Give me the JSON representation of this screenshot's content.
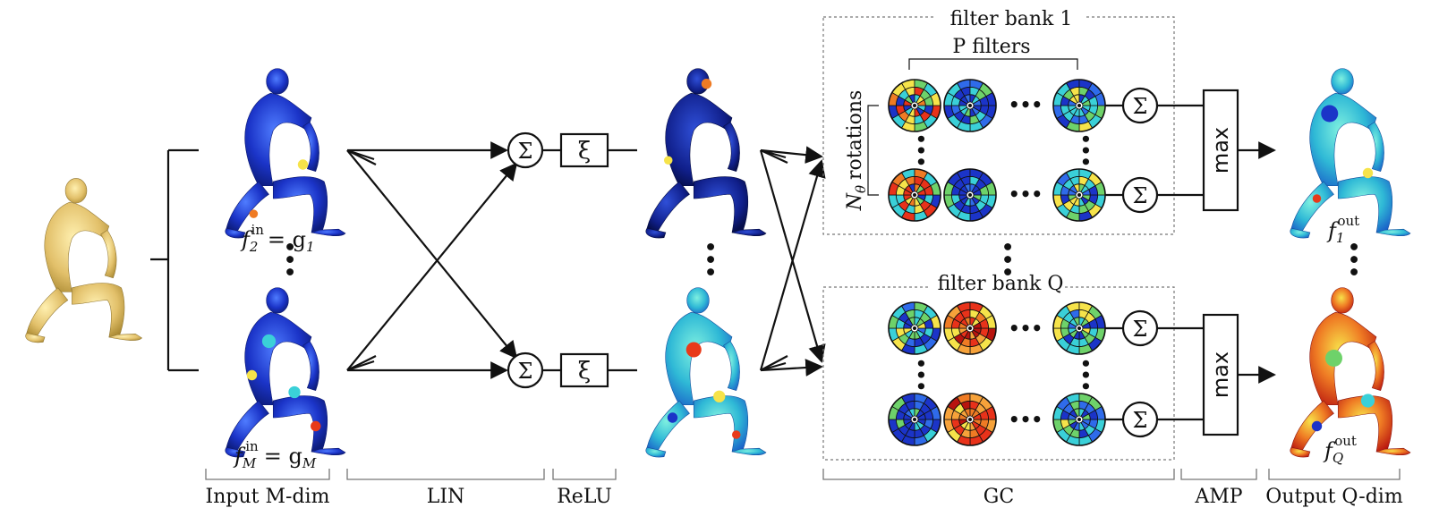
{
  "filter_bank_1": {
    "title": "filter bank 1",
    "p_filters": "P filters",
    "rotations_label": "rotations",
    "rotations_var": "N",
    "rotations_sub": "θ"
  },
  "filter_bank_q": {
    "title": "filter bank Q"
  },
  "inputs": {
    "f2": {
      "base": "f",
      "sub": "2",
      "sup": "in",
      "eq": "= g",
      "eq_sub": "1"
    },
    "fM": {
      "base": "f",
      "sub": "M",
      "sup": "in",
      "eq": "= g",
      "eq_sub": "M"
    }
  },
  "outputs": {
    "f1": {
      "base": "f",
      "sub": "1",
      "sup": "out"
    },
    "fQ": {
      "base": "f",
      "sub": "Q",
      "sup": "out"
    }
  },
  "ops": {
    "sum": "Σ",
    "xi": "ξ",
    "max": "max",
    "dots": "•••"
  },
  "stages": {
    "input": "Input M-dim",
    "lin": "LIN",
    "relu": "ReLU",
    "gc": "GC",
    "amp": "AMP",
    "output": "Output Q-dim"
  },
  "colors": {
    "mesh_blue": "#1f3fd6",
    "mesh_warm": "#e3c06a",
    "hot": "#e83a1a",
    "cyan": "#3ad0d8",
    "yellow": "#f1e24a"
  }
}
